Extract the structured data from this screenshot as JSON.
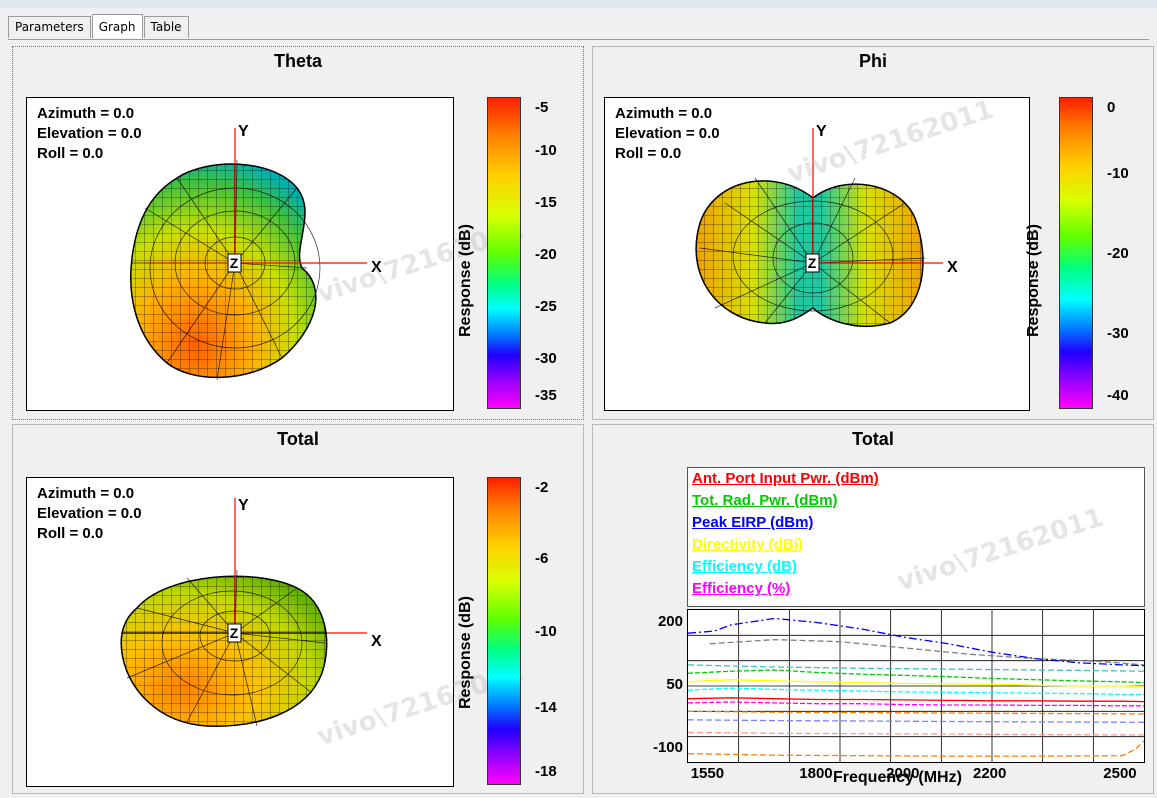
{
  "tabs": [
    {
      "label": "Parameters",
      "active": false
    },
    {
      "label": "Graph",
      "active": true
    },
    {
      "label": "Table",
      "active": false
    }
  ],
  "orientation": {
    "azimuth": "Azimuth = 0.0",
    "elevation": "Elevation = 0.0",
    "roll": "Roll = 0.0"
  },
  "axes": {
    "x": "X",
    "y": "Y",
    "z": "Z"
  },
  "watermark": "vivo\\72162011",
  "panels": {
    "theta": {
      "title": "Theta",
      "colorbar_label": "Response (dB)",
      "ticks": [
        "-5",
        "-10",
        "-15",
        "-20",
        "-25",
        "-30",
        "-35"
      ]
    },
    "phi": {
      "title": "Phi",
      "colorbar_label": "Response (dB)",
      "ticks": [
        "0",
        "-10",
        "-20",
        "-30",
        "-40"
      ]
    },
    "total3d": {
      "title": "Total",
      "colorbar_label": "Response (dB)",
      "ticks": [
        "-2",
        "-6",
        "-10",
        "-14",
        "-18"
      ]
    },
    "total2d": {
      "title": "Total",
      "legend": [
        {
          "label": "Ant. Port Input Pwr. (dBm)",
          "color": "#ff0000"
        },
        {
          "label": "Tot. Rad. Pwr. (dBm)",
          "color": "#00cc00"
        },
        {
          "label": "Peak EIRP (dBm)",
          "color": "#0000ff"
        },
        {
          "label": "Directivity (dBi)",
          "color": "#ffff00"
        },
        {
          "label": "Efficiency (dB)",
          "color": "#00ffff"
        },
        {
          "label": "Efficiency (%)",
          "color": "#ff00ff"
        }
      ]
    }
  },
  "colorscale": [
    "#ff2000",
    "#ff8000",
    "#ffd000",
    "#d8ff00",
    "#60ff00",
    "#00ff60",
    "#00ffff",
    "#0060ff",
    "#2000ff",
    "#a000ff",
    "#ff00ff"
  ],
  "chart_data": {
    "type": "line",
    "xlabel": "Frequency  (MHz)",
    "xticks": [
      1550,
      1800,
      2000,
      2200,
      2500
    ],
    "yticks": [
      200,
      50,
      -100
    ],
    "xlim": [
      1500,
      2550
    ],
    "ylim": [
      -130,
      230
    ],
    "series": [
      {
        "name": "Peak EIRP (dBm)",
        "color": "#0000ff",
        "x": [
          1500,
          1560,
          1600,
          1700,
          1800,
          1900,
          2000,
          2100,
          2200,
          2300,
          2400,
          2500,
          2550
        ],
        "y": [
          175,
          180,
          195,
          210,
          200,
          185,
          165,
          150,
          130,
          115,
          105,
          100,
          98
        ]
      },
      {
        "name": "Tot. Rad. Pwr. (dBm)",
        "color": "#00cc00",
        "x": [
          1500,
          1600,
          1700,
          1800,
          1900,
          2000,
          2100,
          2200,
          2300,
          2400,
          2500,
          2550
        ],
        "y": [
          80,
          85,
          88,
          82,
          78,
          75,
          72,
          68,
          65,
          62,
          60,
          58
        ]
      },
      {
        "name": "Directivity (dBi)",
        "color": "#ffff00",
        "x": [
          1500,
          1600,
          1700,
          1800,
          1900,
          2000,
          2100,
          2200,
          2300,
          2400,
          2500,
          2550
        ],
        "y": [
          60,
          65,
          62,
          60,
          58,
          56,
          55,
          54,
          52,
          50,
          50,
          48
        ]
      },
      {
        "name": "Efficiency (dB)",
        "color": "#00ffff",
        "x": [
          1500,
          1600,
          1700,
          1800,
          1900,
          2000,
          2100,
          2200,
          2300,
          2400,
          2500,
          2550
        ],
        "y": [
          40,
          45,
          42,
          40,
          38,
          36,
          35,
          34,
          33,
          32,
          30,
          30
        ]
      },
      {
        "name": "Ant. Port Input Pwr. (dBm)",
        "color": "#ff0000",
        "x": [
          1500,
          1600,
          1700,
          1800,
          1900,
          2000,
          2100,
          2200,
          2300,
          2400,
          2500,
          2550
        ],
        "y": [
          20,
          22,
          20,
          18,
          18,
          17,
          16,
          15,
          15,
          14,
          14,
          13
        ]
      },
      {
        "name": "Efficiency (%)",
        "color": "#ff00ff",
        "x": [
          1500,
          1600,
          1700,
          1800,
          1900,
          2000,
          2100,
          2200,
          2300,
          2400,
          2500,
          2550
        ],
        "y": [
          10,
          12,
          10,
          8,
          8,
          6,
          5,
          5,
          4,
          4,
          3,
          3
        ]
      }
    ],
    "extra_traces": [
      {
        "color": "#808080",
        "x": [
          1550,
          1700,
          1850,
          2000,
          2150,
          2300,
          2450,
          2550
        ],
        "y": [
          150,
          160,
          155,
          140,
          125,
          115,
          108,
          100
        ]
      },
      {
        "color": "#ff8000",
        "x": [
          1500,
          1600,
          1700,
          1900,
          2100,
          2300,
          2500,
          2530,
          2550
        ],
        "y": [
          -110,
          -112,
          -114,
          -115,
          -116,
          -116,
          -115,
          -100,
          -80
        ]
      },
      {
        "color": "#ff9999",
        "x": [
          1500,
          1700,
          1900,
          2100,
          2300,
          2550
        ],
        "y": [
          -60,
          -62,
          -63,
          -64,
          -65,
          -66
        ]
      },
      {
        "color": "#8080ff",
        "x": [
          1500,
          1700,
          1900,
          2100,
          2300,
          2550
        ],
        "y": [
          -30,
          -32,
          -33,
          -34,
          -35,
          -36
        ]
      },
      {
        "color": "#ff8000",
        "x": [
          1500,
          1700,
          1900,
          2100,
          2300,
          2550
        ],
        "y": [
          -10,
          -12,
          -13,
          -14,
          -15,
          -16
        ]
      },
      {
        "color": "#40c0c0",
        "x": [
          1500,
          1700,
          1900,
          2100,
          2300,
          2550
        ],
        "y": [
          100,
          95,
          92,
          90,
          88,
          85
        ]
      }
    ]
  }
}
